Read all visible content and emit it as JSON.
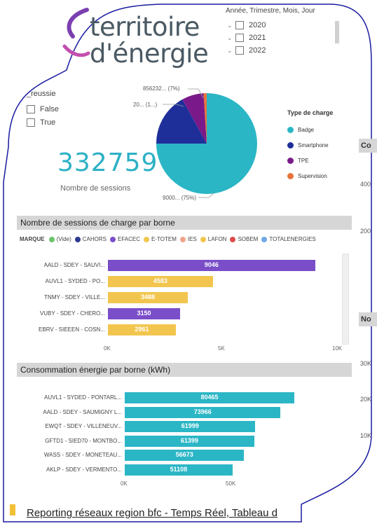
{
  "logo": {
    "line1": "territoire",
    "line2": "d'énergie"
  },
  "date_slicer": {
    "title": "Année, Trimestre, Mois, Jour",
    "items": [
      "2020",
      "2021",
      "2022"
    ]
  },
  "reussie_slicer": {
    "title": "_reussie",
    "items": [
      "False",
      "True"
    ]
  },
  "kpi": {
    "value": "332759",
    "label": "Nombre de sessions"
  },
  "pie": {
    "labels": [
      "856232... (7%)",
      "20... (1...)",
      "9000... (75%)"
    ],
    "legend_title": "Type de charge",
    "legend": [
      {
        "name": "Badge",
        "color": "#2bb6c6"
      },
      {
        "name": "Smartphone",
        "color": "#1f2f9a"
      },
      {
        "name": "TPE",
        "color": "#7a1a8a"
      },
      {
        "name": "Supervision",
        "color": "#e8743b"
      }
    ]
  },
  "cut_right": {
    "header1": "Co",
    "tick1": "400",
    "tick2": "200",
    "header2": "No",
    "tick3": "30K",
    "tick4": "20K",
    "tick5": "10K"
  },
  "section1": {
    "title": "Nombre de sessions de charge  par borne",
    "marque_label": "MARQUE",
    "marques": [
      {
        "name": "(Vide)",
        "color": "#6cc46c"
      },
      {
        "name": "CAHORS",
        "color": "#2a3a8f"
      },
      {
        "name": "EFACEC",
        "color": "#7a4ec9"
      },
      {
        "name": "E-TOTEM",
        "color": "#f2c64e"
      },
      {
        "name": "IES",
        "color": "#f0a58a"
      },
      {
        "name": "LAFON",
        "color": "#f2c64e"
      },
      {
        "name": "SOBEM",
        "color": "#e04b4b"
      },
      {
        "name": "TOTALENERGIES",
        "color": "#6fa8e6"
      }
    ],
    "ticks": [
      "0K",
      "5K",
      "10K"
    ]
  },
  "chart_data": [
    {
      "type": "pie",
      "title": "",
      "legend_title": "Type de charge",
      "slices": [
        {
          "name": "Badge",
          "value": 75
        },
        {
          "name": "Smartphone",
          "value": 17
        },
        {
          "name": "TPE",
          "value": 7
        },
        {
          "name": "Supervision",
          "value": 1
        }
      ],
      "labels": [
        "856232... (7%)",
        "20... (1...)",
        "9000... (75%)"
      ]
    },
    {
      "type": "bar",
      "orientation": "horizontal",
      "title": "Nombre de sessions de charge  par borne",
      "categories": [
        "AALD - SDEY - SAUVI...",
        "AUVL1 - SYDED - PO...",
        "TNMY - SDEY - VILLE...",
        "VUBY - SDEY - CHERO...",
        "EBRV - SIEEEN - COSN..."
      ],
      "values": [
        9046,
        4583,
        3488,
        3150,
        2961
      ],
      "colors": [
        "#7a4ec9",
        "#f2c64e",
        "#f2c64e",
        "#7a4ec9",
        "#f2c64e"
      ],
      "xlim": [
        0,
        10000
      ],
      "ticks": [
        "0K",
        "5K",
        "10K"
      ]
    },
    {
      "type": "bar",
      "orientation": "horizontal",
      "title": "Consommation énergie par borne (kWh)",
      "categories": [
        "AUVL1 - SYDED - PONTARL...",
        "AALD - SDEY - SAUMIGNY L...",
        "EWQT - SDEY - VILLENEUV...",
        "GFTD1 - SIED70 - MONTBO...",
        "WASS - SDEY - MONETEAU...",
        "AKLP - SDEY - VERMENTO..."
      ],
      "values": [
        80465,
        73966,
        61999,
        61399,
        56673,
        51108
      ],
      "color": "#2bb6c6",
      "xlim": [
        0,
        80465
      ],
      "ticks": [
        "0K",
        "50K"
      ]
    }
  ],
  "section2": {
    "title": "Consommation énergie par borne (kWh)",
    "ticks": [
      "0K",
      "50K"
    ]
  },
  "footer": {
    "title": "Reporting réseaux region bfc - Temps Réel, Tableau d"
  }
}
